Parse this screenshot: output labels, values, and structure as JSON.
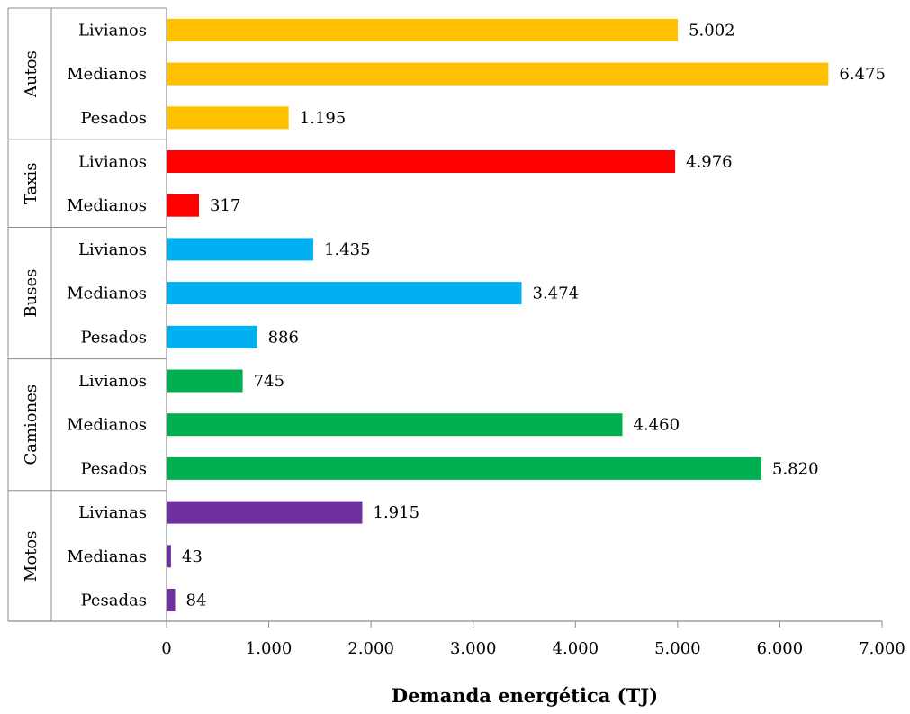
{
  "chart_data": {
    "type": "bar",
    "orientation": "horizontal",
    "xlabel": "Demanda energética (TJ)",
    "xlim": [
      0,
      7000
    ],
    "x_ticks": [
      0,
      1000,
      2000,
      3000,
      4000,
      5000,
      6000,
      7000
    ],
    "x_tick_labels": [
      "0",
      "1.000",
      "2.000",
      "3.000",
      "4.000",
      "5.000",
      "6.000",
      "7.000"
    ],
    "grid": false,
    "groups": [
      {
        "name": "Autos",
        "color": "#FFC000",
        "items": [
          {
            "label": "Livianos",
            "value": 5002,
            "value_label": "5.002"
          },
          {
            "label": "Medianos",
            "value": 6475,
            "value_label": "6.475"
          },
          {
            "label": "Pesados",
            "value": 1195,
            "value_label": "1.195"
          }
        ]
      },
      {
        "name": "Taxis",
        "color": "#FF0000",
        "items": [
          {
            "label": "Livianos",
            "value": 4976,
            "value_label": "4.976"
          },
          {
            "label": "Medianos",
            "value": 317,
            "value_label": "317"
          }
        ]
      },
      {
        "name": "Buses",
        "color": "#00B0F0",
        "items": [
          {
            "label": "Livianos",
            "value": 1435,
            "value_label": "1.435"
          },
          {
            "label": "Medianos",
            "value": 3474,
            "value_label": "3.474"
          },
          {
            "label": "Pesados",
            "value": 886,
            "value_label": "886"
          }
        ]
      },
      {
        "name": "Camiones",
        "color": "#00B050",
        "items": [
          {
            "label": "Livianos",
            "value": 745,
            "value_label": "745"
          },
          {
            "label": "Medianos",
            "value": 4460,
            "value_label": "4.460"
          },
          {
            "label": "Pesados",
            "value": 5820,
            "value_label": "5.820"
          }
        ]
      },
      {
        "name": "Motos",
        "color": "#7030A0",
        "items": [
          {
            "label": "Livianas",
            "value": 1915,
            "value_label": "1.915"
          },
          {
            "label": "Medianas",
            "value": 43,
            "value_label": "43"
          },
          {
            "label": "Pesadas",
            "value": 84,
            "value_label": "84"
          }
        ]
      }
    ]
  }
}
